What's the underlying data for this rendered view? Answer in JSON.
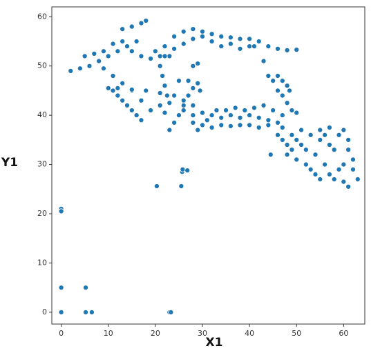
{
  "chart_data": {
    "type": "scatter",
    "xlabel": "X1",
    "ylabel": "Y1",
    "color": "#1f77b4",
    "edgecolor": "#ffffff",
    "xlim": [
      -2,
      64.5
    ],
    "ylim": [
      -2.4,
      62
    ],
    "xticks": [
      0,
      10,
      20,
      30,
      40,
      50,
      60
    ],
    "yticks": [
      0,
      10,
      20,
      30,
      40,
      50,
      60
    ],
    "x": [
      0,
      0,
      0,
      0,
      5.2,
      5.2,
      6.5,
      23,
      23.3,
      20.3,
      25.5,
      25.7,
      25.8,
      26.8,
      44.5,
      2,
      4,
      6,
      8,
      10,
      12,
      14,
      16,
      13,
      15,
      17,
      18,
      5,
      7,
      9,
      11,
      13,
      15,
      17,
      19,
      21,
      23,
      10,
      11,
      12,
      13,
      14,
      15,
      16,
      17,
      9,
      11,
      13,
      15,
      17,
      19,
      12,
      15,
      18,
      21,
      24,
      26,
      28,
      20,
      22,
      24,
      26,
      28,
      30,
      32,
      34,
      36,
      38,
      40,
      42,
      44,
      46,
      48,
      50,
      22,
      24,
      26,
      28,
      30,
      32,
      34,
      36,
      38,
      40,
      41,
      43,
      44,
      45,
      46,
      47,
      48,
      49,
      50,
      46,
      47,
      48,
      48.5,
      21,
      21.5,
      22,
      22.5,
      23,
      21,
      22,
      23,
      24,
      25,
      26,
      27,
      28,
      29,
      25,
      27,
      28,
      29,
      29.5,
      26,
      28,
      30,
      32,
      34,
      36,
      38,
      40,
      42,
      44,
      46,
      30,
      32,
      34,
      36,
      38,
      40,
      42,
      44,
      28,
      29,
      31,
      33,
      35,
      37,
      39,
      41,
      43,
      45,
      47,
      46,
      47,
      48,
      48,
      49,
      50,
      50,
      51,
      52,
      52,
      53,
      54,
      55,
      54,
      55,
      56,
      56,
      57,
      58,
      58,
      59,
      60,
      60,
      60,
      61,
      61,
      61,
      62,
      62,
      63,
      59,
      57,
      53,
      51,
      47,
      49,
      55,
      57
    ],
    "y": [
      21,
      20.5,
      5,
      0,
      5,
      0,
      0,
      0,
      0,
      25.6,
      25.6,
      28.5,
      29,
      28.8,
      32,
      49,
      49.5,
      50,
      51,
      52,
      53,
      54,
      55,
      57.5,
      58,
      58.7,
      59.2,
      52,
      52.5,
      53,
      54.5,
      55,
      53,
      52,
      51.5,
      52,
      52,
      45.5,
      45,
      44,
      43,
      42,
      41,
      40,
      39,
      49.5,
      48,
      46.5,
      45,
      43,
      41,
      45.5,
      45.2,
      45,
      44.5,
      44,
      43,
      42,
      53,
      54,
      56,
      57,
      57.5,
      57,
      56.5,
      56,
      55.8,
      55.5,
      55.5,
      55,
      54,
      53.5,
      53.2,
      53.3,
      52,
      53.5,
      54.5,
      55.5,
      56,
      55,
      54,
      54.5,
      53.5,
      54,
      54,
      51,
      48,
      47,
      45,
      44,
      42.5,
      41,
      40.5,
      48,
      47,
      46,
      45,
      50,
      48,
      46,
      44,
      42.5,
      42,
      40.5,
      37,
      38.5,
      40,
      42,
      44,
      45.5,
      46.5,
      47,
      47,
      50,
      50.5,
      45,
      41,
      40,
      40.5,
      40,
      39.5,
      40,
      39.5,
      40,
      39.5,
      39,
      38.5,
      38,
      37.5,
      38,
      37.8,
      38,
      38,
      37.5,
      38,
      38.5,
      37,
      39,
      41,
      41,
      41.5,
      41,
      41.5,
      42,
      41,
      40,
      36,
      35,
      34,
      32,
      33,
      31,
      35,
      34,
      33,
      30,
      29,
      28,
      27,
      32,
      35,
      36,
      30,
      28,
      27,
      33,
      36,
      37,
      30,
      26.5,
      25.5,
      35,
      33,
      29,
      31,
      27,
      29,
      34,
      36,
      37,
      37.5,
      36,
      37,
      37.5
    ]
  }
}
